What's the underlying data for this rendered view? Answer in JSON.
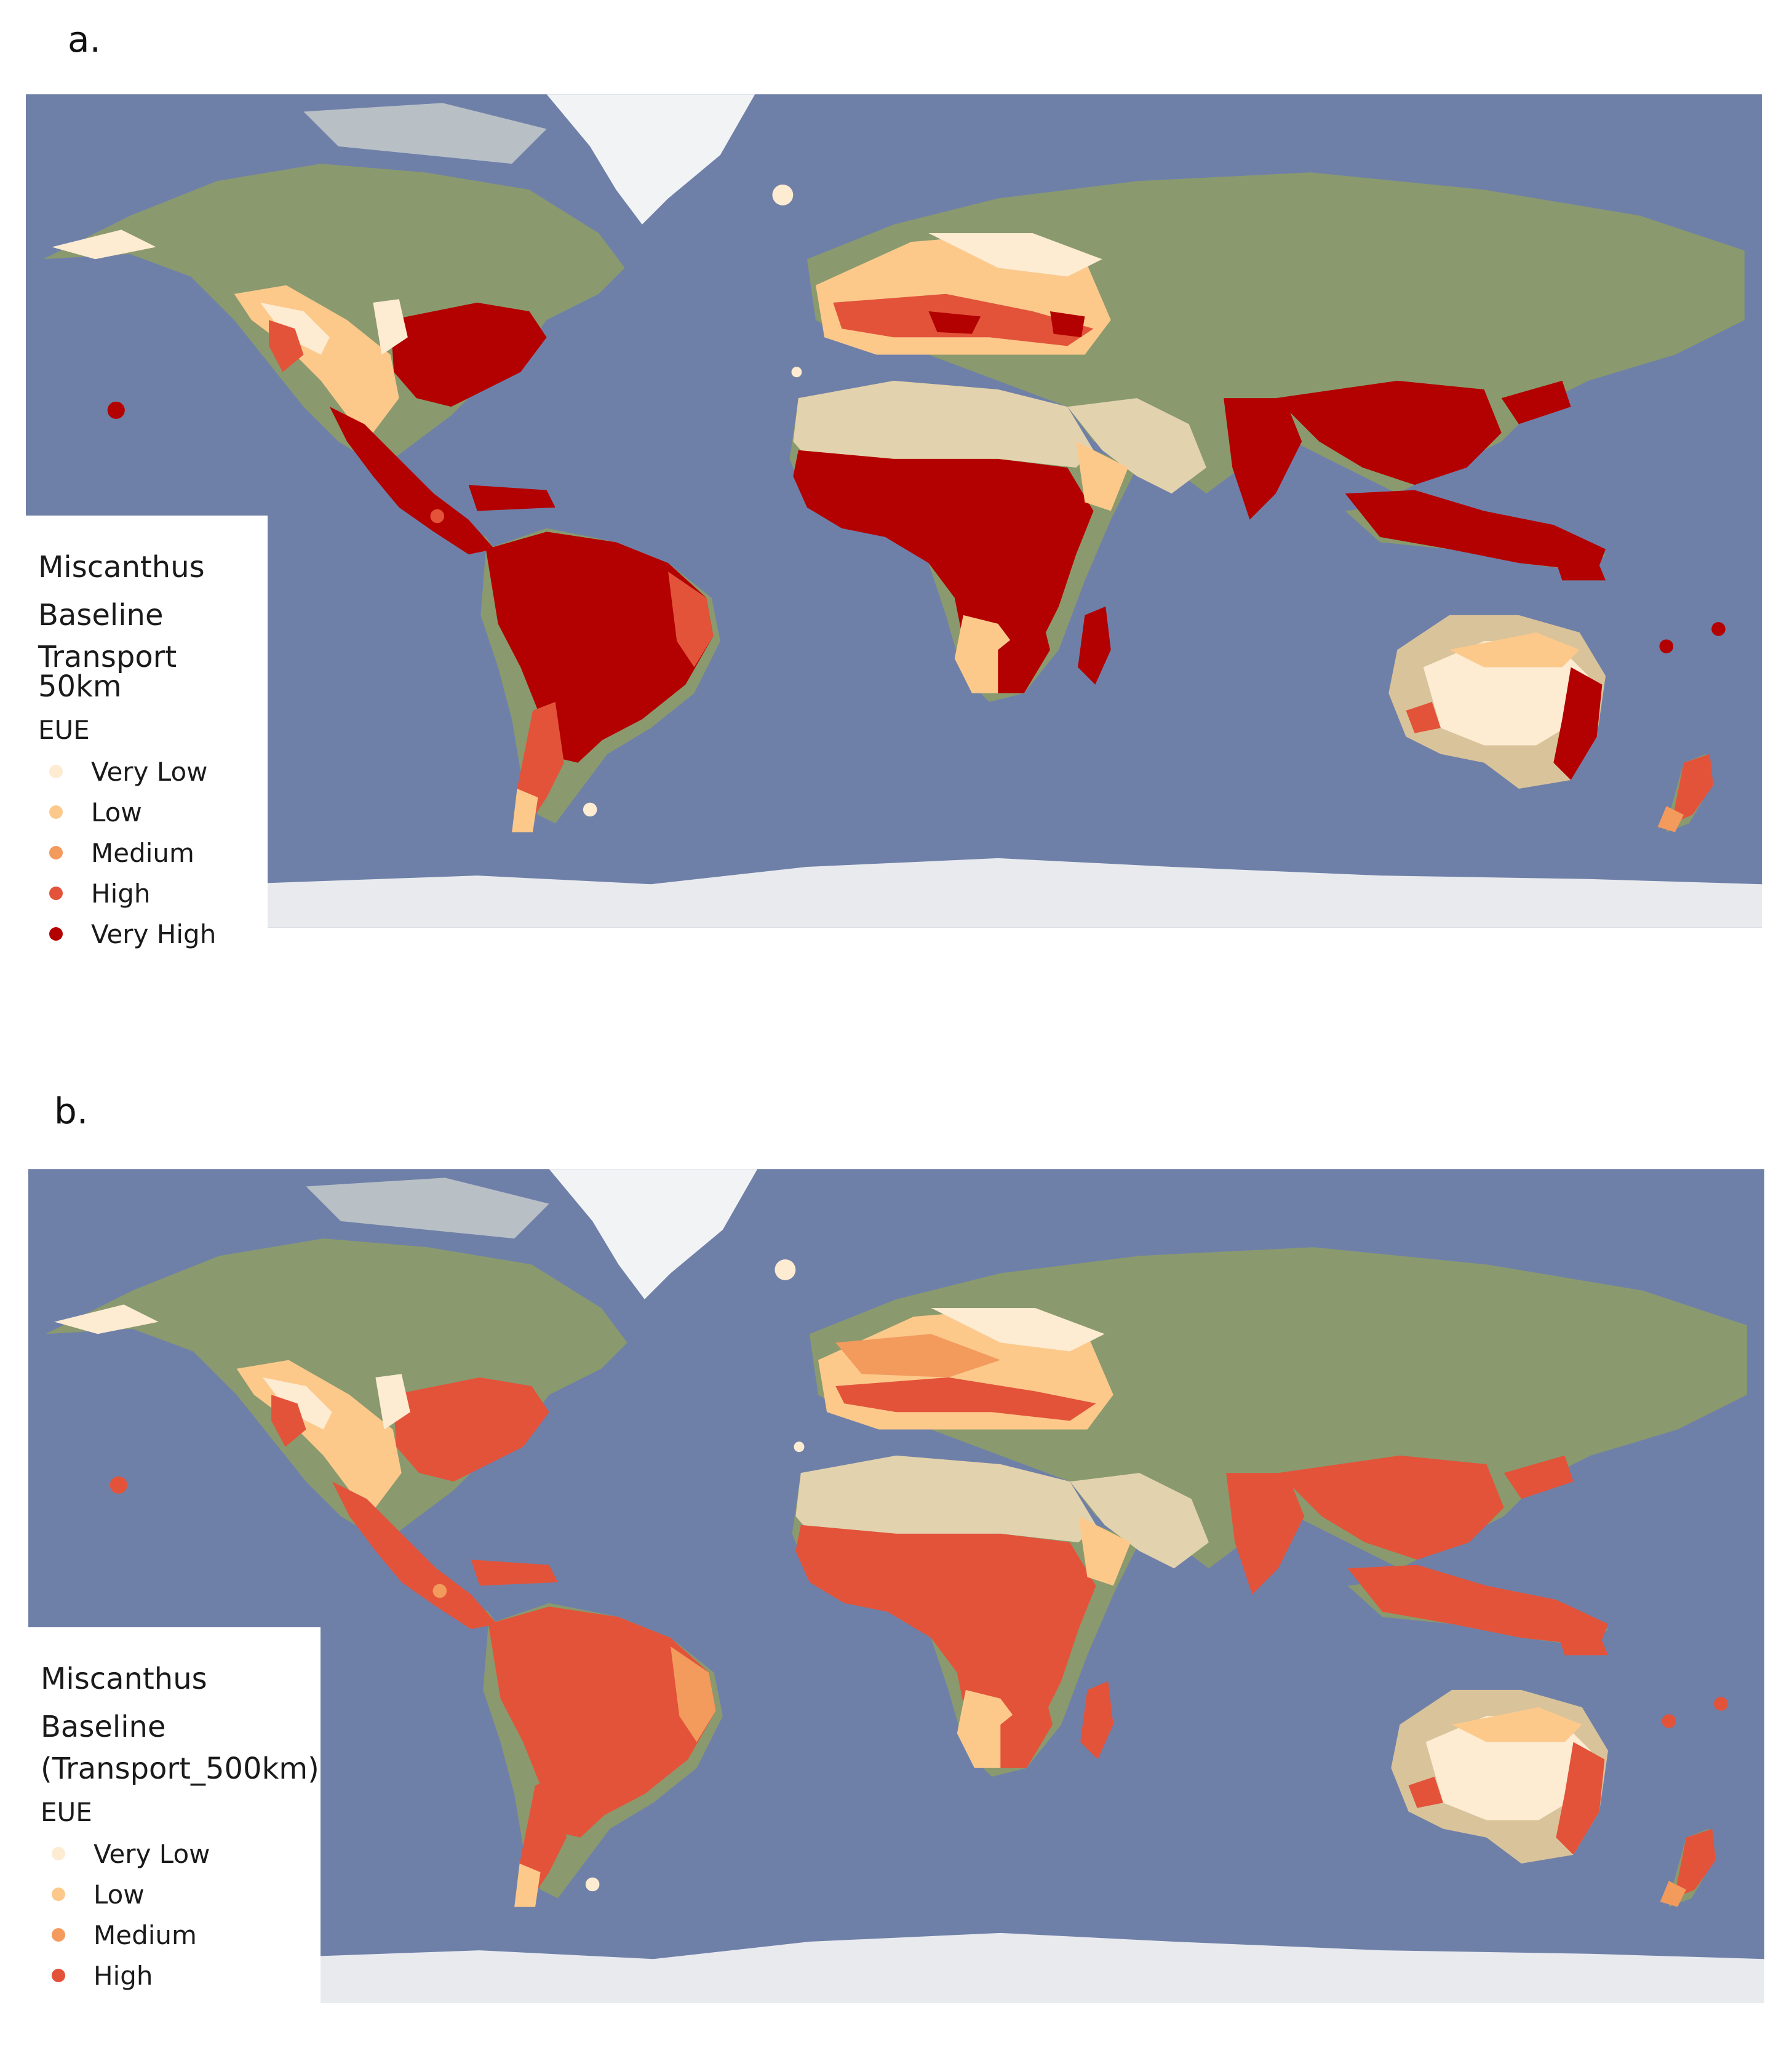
{
  "panels": [
    {
      "label": "a.",
      "legend": {
        "title_lines": [
          "Miscanthus",
          "Baseline",
          "Transport 50km"
        ],
        "subtitle": "EUE",
        "classes": [
          {
            "label": "Very Low",
            "color": "#fdebd2"
          },
          {
            "label": "Low",
            "color": "#fcc98b"
          },
          {
            "label": "Medium",
            "color": "#f39a5d"
          },
          {
            "label": "High",
            "color": "#e2533a"
          },
          {
            "label": "Very High",
            "color": "#b30000"
          }
        ]
      }
    },
    {
      "label": "b.",
      "legend": {
        "title_lines": [
          "Miscanthus",
          "Baseline",
          "(Transport_500km)"
        ],
        "subtitle": "EUE",
        "classes": [
          {
            "label": "Very Low",
            "color": "#fdebd2"
          },
          {
            "label": "Low",
            "color": "#fcc98b"
          },
          {
            "label": "Medium",
            "color": "#f39a5d"
          },
          {
            "label": "High",
            "color": "#e2533a"
          }
        ]
      }
    }
  ],
  "colors": {
    "ocean": "#6f80a8",
    "land_green": "#8a9a6e",
    "desert": "#d9c39a",
    "ice": "#e8eaee",
    "very_low": "#fdebd2",
    "low": "#fcc98b",
    "medium": "#f39a5d",
    "high": "#e2533a",
    "very_high": "#b30000"
  }
}
